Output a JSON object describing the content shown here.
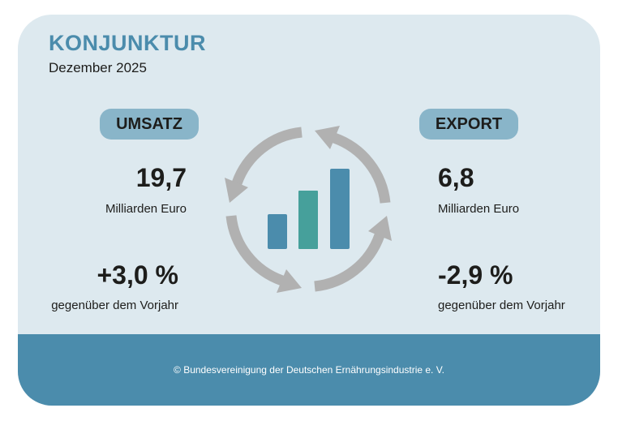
{
  "header": {
    "title": "KONJUNKTUR",
    "date": "Dezember 2025"
  },
  "umsatz": {
    "label": "UMSATZ",
    "value": "19,7",
    "unit": "Milliarden Euro",
    "change": "+3,0 %",
    "change_label": "gegenüber dem Vorjahr"
  },
  "export": {
    "label": "EXPORT",
    "value": "6,8",
    "unit": "Milliarden Euro",
    "change": "-2,9 %",
    "change_label": "gegenüber dem Vorjahr"
  },
  "footer": {
    "copyright": "© Bundesvereinigung der Deutschen Ernährungsindustrie e. V."
  },
  "colors": {
    "accent": "#4b8cac",
    "teal": "#46a09b",
    "pill": "#89b5c9",
    "arrows": "#b1b1b1",
    "background": "#dde9ef"
  },
  "icon": "cycle-with-bar-chart-icon"
}
